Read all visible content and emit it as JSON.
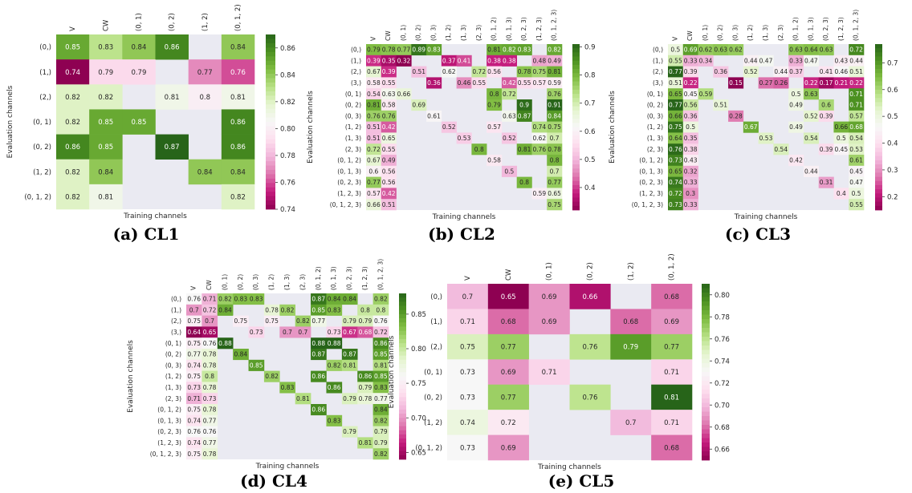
{
  "figure": {
    "panels": [
      {
        "id": "cl1",
        "caption": "(a) CL1"
      },
      {
        "id": "cl2",
        "caption": "(b) CL2"
      },
      {
        "id": "cl3",
        "caption": "(c) CL3"
      },
      {
        "id": "cl4",
        "caption": "(d) CL4"
      },
      {
        "id": "cl5",
        "caption": "(e) CL5"
      }
    ]
  },
  "chart_data": [
    {
      "type": "heatmap",
      "title": "(a) CL1",
      "xlabel": "Training channels",
      "ylabel": "Evaluation channels",
      "columns": [
        "V",
        "CW",
        "(0, 1)",
        "(0, 2)",
        "(1, 2)",
        "(0, 1, 2)"
      ],
      "rows": [
        "(0,)",
        "(1,)",
        "(2,)",
        "(0, 1)",
        "(0, 2)",
        "(1, 2)",
        "(0, 1, 2)"
      ],
      "values": [
        [
          0.85,
          0.83,
          0.84,
          0.86,
          null,
          0.84
        ],
        [
          0.74,
          0.79,
          0.79,
          null,
          0.77,
          0.76
        ],
        [
          0.82,
          0.82,
          null,
          0.81,
          0.8,
          0.81
        ],
        [
          0.82,
          0.85,
          0.85,
          null,
          null,
          0.86
        ],
        [
          0.86,
          0.85,
          null,
          0.87,
          null,
          0.86
        ],
        [
          0.82,
          0.84,
          null,
          null,
          0.84,
          0.84
        ],
        [
          0.82,
          0.81,
          null,
          null,
          null,
          0.82
        ]
      ],
      "vmin": 0.74,
      "vmax": 0.87,
      "colorbar_ticks": [
        0.74,
        0.76,
        0.78,
        0.8,
        0.82,
        0.84,
        0.86
      ],
      "colorbar_labels": [
        "0.74",
        "0.76",
        "0.78",
        "0.80",
        "0.82",
        "0.84",
        "0.86"
      ],
      "show_values": true,
      "colormap": "PiYG",
      "missing_color": "#eaeaf2"
    },
    {
      "type": "heatmap",
      "title": "(b) CL2",
      "xlabel": "Training channels",
      "ylabel": "Evaluation channels",
      "columns": [
        "V",
        "CW",
        "(0, 1)",
        "(0, 2)",
        "(0, 3)",
        "(1, 2)",
        "(1, 3)",
        "(2, 3)",
        "(0, 1, 2)",
        "(0, 1, 3)",
        "(0, 2, 3)",
        "(1, 2, 3)",
        "(0, 1, 2, 3)"
      ],
      "rows": [
        "(0,)",
        "(1,)",
        "(2,)",
        "(3,)",
        "(0, 1)",
        "(0, 2)",
        "(0, 3)",
        "(1, 2)",
        "(1, 3)",
        "(2, 3)",
        "(0, 1, 2)",
        "(0, 1, 3)",
        "(0, 2, 3)",
        "(1, 2, 3)",
        "(0, 1, 2, 3)"
      ],
      "values": [
        [
          0.79,
          0.78,
          0.77,
          0.89,
          0.83,
          null,
          null,
          null,
          0.81,
          0.82,
          0.83,
          null,
          0.82
        ],
        [
          0.39,
          0.35,
          0.32,
          null,
          null,
          0.37,
          0.41,
          null,
          0.38,
          0.38,
          null,
          0.48,
          0.49
        ],
        [
          0.67,
          0.39,
          null,
          0.51,
          null,
          0.62,
          null,
          0.72,
          0.56,
          null,
          0.78,
          0.75,
          0.81
        ],
        [
          0.58,
          0.55,
          null,
          null,
          0.36,
          null,
          0.46,
          0.55,
          null,
          0.42,
          0.55,
          0.57,
          0.59
        ],
        [
          0.54,
          0.63,
          0.66,
          null,
          null,
          null,
          null,
          null,
          0.8,
          0.72,
          null,
          null,
          0.76
        ],
        [
          0.81,
          0.58,
          null,
          0.69,
          null,
          null,
          null,
          null,
          0.79,
          null,
          0.9,
          null,
          0.91
        ],
        [
          0.76,
          0.76,
          null,
          null,
          0.61,
          null,
          null,
          null,
          null,
          0.63,
          0.87,
          null,
          0.84
        ],
        [
          0.51,
          0.42,
          null,
          null,
          null,
          0.52,
          null,
          null,
          0.57,
          null,
          null,
          0.74,
          0.75
        ],
        [
          0.51,
          0.65,
          null,
          null,
          null,
          null,
          0.53,
          null,
          null,
          0.52,
          null,
          0.62,
          0.7
        ],
        [
          0.72,
          0.55,
          null,
          null,
          null,
          null,
          null,
          0.8,
          null,
          null,
          0.81,
          0.76,
          0.78
        ],
        [
          0.67,
          0.49,
          null,
          null,
          null,
          null,
          null,
          null,
          0.58,
          null,
          null,
          null,
          0.8
        ],
        [
          0.6,
          0.56,
          null,
          null,
          null,
          null,
          null,
          null,
          null,
          0.5,
          null,
          null,
          0.7
        ],
        [
          0.77,
          0.56,
          null,
          null,
          null,
          null,
          null,
          null,
          null,
          null,
          0.8,
          null,
          0.77
        ],
        [
          0.57,
          0.42,
          null,
          null,
          null,
          null,
          null,
          null,
          null,
          null,
          null,
          0.59,
          0.65
        ],
        [
          0.66,
          0.51,
          null,
          null,
          null,
          null,
          null,
          null,
          null,
          null,
          null,
          null,
          0.75
        ]
      ],
      "vmin": 0.32,
      "vmax": 0.91,
      "colorbar_ticks": [
        0.4,
        0.5,
        0.6,
        0.7,
        0.8,
        0.9
      ],
      "colorbar_labels": [
        "0.4",
        "0.5",
        "0.6",
        "0.7",
        "0.8",
        "0.9"
      ],
      "show_values": true,
      "colormap": "PiYG",
      "missing_color": "#eaeaf2"
    },
    {
      "type": "heatmap",
      "title": "(c) CL3",
      "xlabel": "Training channels",
      "ylabel": "Evaluation channels",
      "columns": [
        "V",
        "CW",
        "(0, 1)",
        "(0, 2)",
        "(0, 3)",
        "(1, 2)",
        "(1, 3)",
        "(2, 3)",
        "(0, 1, 2)",
        "(0, 1, 3)",
        "(0, 2, 3)",
        "(1, 2, 3)",
        "(0, 1, 2, 3)"
      ],
      "rows": [
        "(0,)",
        "(1,)",
        "(2,)",
        "(3,)",
        "(0, 1)",
        "(0, 2)",
        "(0, 3)",
        "(1, 2)",
        "(1, 3)",
        "(2, 3)",
        "(0, 1, 2)",
        "(0, 1, 3)",
        "(0, 2, 3)",
        "(1, 2, 3)",
        "(0, 1, 2, 3)"
      ],
      "values": [
        [
          0.5,
          0.69,
          0.62,
          0.63,
          0.62,
          null,
          null,
          null,
          0.63,
          0.64,
          0.63,
          null,
          0.72
        ],
        [
          0.55,
          0.33,
          0.34,
          null,
          null,
          0.44,
          0.47,
          null,
          0.33,
          0.47,
          null,
          0.43,
          0.44
        ],
        [
          0.77,
          0.39,
          null,
          0.36,
          null,
          0.52,
          null,
          0.44,
          0.37,
          null,
          0.41,
          0.46,
          0.51
        ],
        [
          0.51,
          0.22,
          null,
          null,
          0.15,
          null,
          0.27,
          0.26,
          null,
          0.22,
          0.17,
          0.21,
          0.22
        ],
        [
          0.65,
          0.45,
          0.59,
          null,
          null,
          null,
          null,
          null,
          0.5,
          0.63,
          null,
          null,
          0.71
        ],
        [
          0.77,
          0.56,
          null,
          0.51,
          null,
          null,
          null,
          null,
          0.49,
          null,
          0.6,
          null,
          0.71
        ],
        [
          0.66,
          0.36,
          null,
          null,
          0.28,
          null,
          null,
          null,
          null,
          0.52,
          0.39,
          null,
          0.57
        ],
        [
          0.75,
          0.5,
          null,
          null,
          null,
          0.67,
          null,
          null,
          0.49,
          null,
          null,
          0.66,
          0.68
        ],
        [
          0.64,
          0.35,
          null,
          null,
          null,
          null,
          0.53,
          null,
          null,
          0.54,
          null,
          0.5,
          0.54
        ],
        [
          0.76,
          0.38,
          null,
          null,
          null,
          null,
          null,
          0.54,
          null,
          null,
          0.39,
          0.45,
          0.53
        ],
        [
          0.73,
          0.43,
          null,
          null,
          null,
          null,
          null,
          null,
          0.42,
          null,
          null,
          null,
          0.61
        ],
        [
          0.65,
          0.32,
          null,
          null,
          null,
          null,
          null,
          null,
          null,
          0.44,
          null,
          null,
          0.45
        ],
        [
          0.74,
          0.33,
          null,
          null,
          null,
          null,
          null,
          null,
          null,
          null,
          0.31,
          null,
          0.47
        ],
        [
          0.72,
          0.3,
          null,
          null,
          null,
          null,
          null,
          null,
          null,
          null,
          null,
          0.4,
          0.5
        ],
        [
          0.73,
          0.33,
          null,
          null,
          null,
          null,
          null,
          null,
          null,
          null,
          null,
          null,
          0.55
        ]
      ],
      "vmin": 0.15,
      "vmax": 0.77,
      "colorbar_ticks": [
        0.2,
        0.3,
        0.4,
        0.5,
        0.6,
        0.7
      ],
      "colorbar_labels": [
        "0.2",
        "0.3",
        "0.4",
        "0.5",
        "0.6",
        "0.7"
      ],
      "show_values": true,
      "colormap": "PiYG",
      "missing_color": "#eaeaf2"
    },
    {
      "type": "heatmap",
      "title": "(d) CL4",
      "xlabel": "Training channels",
      "ylabel": "Evaluation channels",
      "columns": [
        "V",
        "CW",
        "(0, 1)",
        "(0, 2)",
        "(0, 3)",
        "(1, 2)",
        "(1, 3)",
        "(2, 3)",
        "(0, 1, 2)",
        "(0, 1, 3)",
        "(0, 2, 3)",
        "(1, 2, 3)",
        "(0, 1, 2, 3)"
      ],
      "rows": [
        "(0,)",
        "(1,)",
        "(2,)",
        "(3,)",
        "(0, 1)",
        "(0, 2)",
        "(0, 3)",
        "(1, 2)",
        "(1, 3)",
        "(2, 3)",
        "(0, 1, 2)",
        "(0, 1, 3)",
        "(0, 2, 3)",
        "(1, 2, 3)",
        "(0, 1, 2, 3)"
      ],
      "values": [
        [
          0.76,
          0.71,
          0.82,
          0.83,
          0.83,
          null,
          null,
          null,
          0.87,
          0.84,
          0.84,
          null,
          0.82
        ],
        [
          0.7,
          0.72,
          0.84,
          null,
          null,
          0.78,
          0.82,
          null,
          0.85,
          0.83,
          null,
          0.8,
          0.8
        ],
        [
          0.75,
          0.7,
          null,
          0.75,
          null,
          0.75,
          null,
          0.82,
          0.77,
          null,
          0.79,
          0.79,
          0.76
        ],
        [
          0.64,
          0.65,
          null,
          null,
          0.73,
          null,
          0.7,
          0.7,
          null,
          0.73,
          0.67,
          0.68,
          0.72
        ],
        [
          0.75,
          0.76,
          0.88,
          null,
          null,
          null,
          null,
          null,
          0.88,
          0.88,
          null,
          null,
          0.86
        ],
        [
          0.77,
          0.78,
          null,
          0.84,
          null,
          null,
          null,
          null,
          0.87,
          null,
          0.87,
          null,
          0.85
        ],
        [
          0.74,
          0.78,
          null,
          null,
          0.85,
          null,
          null,
          null,
          null,
          0.82,
          0.81,
          null,
          0.81
        ],
        [
          0.75,
          0.8,
          null,
          null,
          null,
          0.82,
          null,
          null,
          0.86,
          null,
          null,
          0.86,
          0.85
        ],
        [
          0.73,
          0.78,
          null,
          null,
          null,
          null,
          0.83,
          null,
          null,
          0.86,
          null,
          0.79,
          0.83
        ],
        [
          0.71,
          0.73,
          null,
          null,
          null,
          null,
          null,
          0.81,
          null,
          null,
          0.79,
          0.78,
          0.77
        ],
        [
          0.75,
          0.78,
          null,
          null,
          null,
          null,
          null,
          null,
          0.86,
          null,
          null,
          null,
          0.84
        ],
        [
          0.74,
          0.77,
          null,
          null,
          null,
          null,
          null,
          null,
          null,
          0.83,
          null,
          null,
          0.82
        ],
        [
          0.76,
          0.76,
          null,
          null,
          null,
          null,
          null,
          null,
          null,
          null,
          0.79,
          null,
          0.79
        ],
        [
          0.74,
          0.77,
          null,
          null,
          null,
          null,
          null,
          null,
          null,
          null,
          null,
          0.81,
          0.79
        ],
        [
          0.75,
          0.78,
          null,
          null,
          null,
          null,
          null,
          null,
          null,
          null,
          null,
          null,
          0.82
        ]
      ],
      "vmin": 0.64,
      "vmax": 0.88,
      "colorbar_ticks": [
        0.65,
        0.7,
        0.75,
        0.8,
        0.85
      ],
      "colorbar_labels": [
        "0.65",
        "0.70",
        "0.75",
        "0.80",
        "0.85"
      ],
      "show_values": true,
      "colormap": "PiYG",
      "missing_color": "#eaeaf2"
    },
    {
      "type": "heatmap",
      "title": "(e) CL5",
      "xlabel": "Training channels",
      "ylabel": "Evaluation channels",
      "columns": [
        "V",
        "CW",
        "(0, 1)",
        "(0, 2)",
        "(1, 2)",
        "(0, 1, 2)"
      ],
      "rows": [
        "(0,)",
        "(1,)",
        "(2,)",
        "(0, 1)",
        "(0, 2)",
        "(1, 2)",
        "(0, 1, 2)"
      ],
      "values": [
        [
          0.7,
          0.65,
          0.69,
          0.66,
          null,
          0.68
        ],
        [
          0.71,
          0.68,
          0.69,
          null,
          0.68,
          0.69
        ],
        [
          0.75,
          0.77,
          null,
          0.76,
          0.79,
          0.77
        ],
        [
          0.73,
          0.69,
          0.71,
          null,
          null,
          0.71
        ],
        [
          0.73,
          0.77,
          null,
          0.76,
          null,
          0.81
        ],
        [
          0.74,
          0.72,
          null,
          null,
          0.7,
          0.71
        ],
        [
          0.73,
          0.69,
          null,
          null,
          null,
          0.68
        ]
      ],
      "vmin": 0.65,
      "vmax": 0.81,
      "colorbar_ticks": [
        0.66,
        0.68,
        0.7,
        0.72,
        0.74,
        0.76,
        0.78,
        0.8
      ],
      "colorbar_labels": [
        "0.66",
        "0.68",
        "0.70",
        "0.72",
        "0.74",
        "0.76",
        "0.78",
        "0.80"
      ],
      "show_values": true,
      "colormap": "PiYG",
      "missing_color": "#eaeaf2"
    }
  ]
}
